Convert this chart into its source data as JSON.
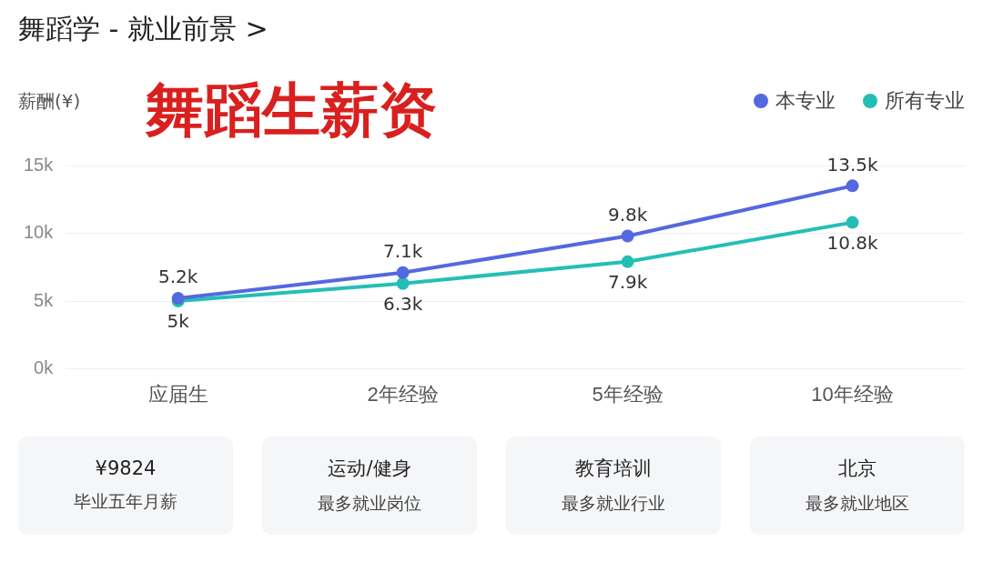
{
  "chart_data": {
    "type": "line",
    "title": "舞蹈学 - 就业前景 >",
    "subtitle": "舞蹈生薪资",
    "ylabel": "薪酬(¥)",
    "categories": [
      "应届生",
      "2年经验",
      "5年经验",
      "10年经验"
    ],
    "series": [
      {
        "name": "本专业",
        "color": "#5468e0",
        "values": [
          5.2,
          7.1,
          9.8,
          13.5
        ],
        "value_labels": [
          "5.2k",
          "7.1k",
          "9.8k",
          "13.5k"
        ]
      },
      {
        "name": "所有专业",
        "color": "#23bfb5",
        "values": [
          5,
          6.3,
          7.9,
          10.8
        ],
        "value_labels": [
          "5k",
          "6.3k",
          "7.9k",
          "10.8k"
        ]
      }
    ],
    "ylim": [
      0,
      15
    ],
    "yticks": [
      {
        "value": 0,
        "label": "0k"
      },
      {
        "value": 5,
        "label": "5k"
      },
      {
        "value": 10,
        "label": "10k"
      },
      {
        "value": 15,
        "label": "15k"
      }
    ],
    "grid": "y",
    "legend": "top right",
    "marker": "circle",
    "line_style": "solid",
    "annotations": [
      "¥9824",
      "毕业五年月薪",
      "运动/健身",
      "最多就业岗位",
      "教育培训",
      "最多就业行业",
      "北京",
      "最多就业地区"
    ]
  }
}
